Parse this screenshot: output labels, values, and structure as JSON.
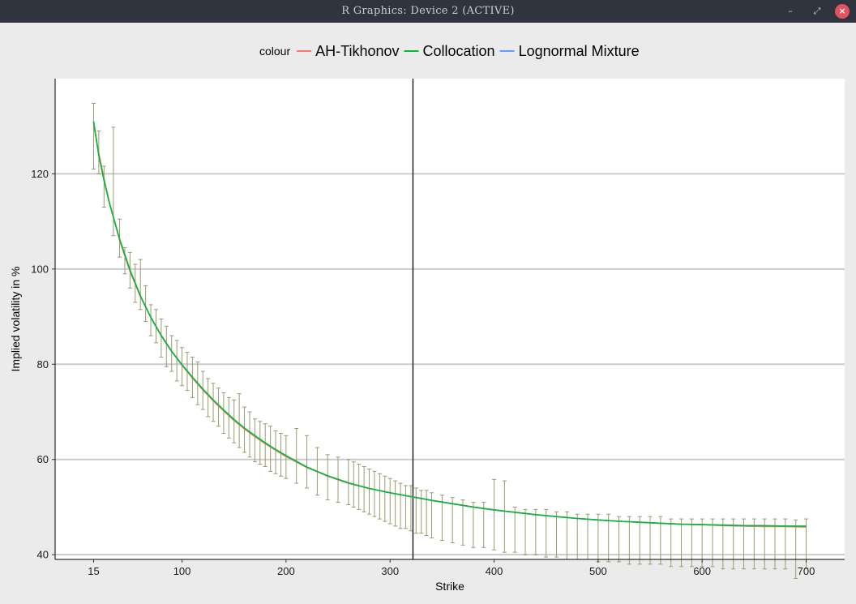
{
  "window": {
    "title": "R Graphics: Device 2 (ACTIVE)",
    "minimize_glyph": "–",
    "maximize_glyph": "⤢",
    "close_glyph": "×"
  },
  "chart_data": {
    "type": "line",
    "xlabel": "Strike",
    "ylabel": "Implied volatility in %",
    "x_ticks": [
      15,
      100,
      200,
      300,
      400,
      500,
      600,
      700
    ],
    "y_ticks": [
      40,
      60,
      80,
      100,
      120
    ],
    "xlim": [
      -22,
      737
    ],
    "ylim": [
      39,
      140
    ],
    "grid": "horizontal",
    "vline_x": 322,
    "legend": {
      "title": "colour",
      "position": "top",
      "entries": [
        {
          "name": "AH-Tikhonov",
          "color": "#f8766d"
        },
        {
          "name": "Collocation",
          "color": "#00ba38"
        },
        {
          "name": "Lognormal Mixture",
          "color": "#619cff"
        }
      ]
    },
    "series": [
      {
        "name": "AH-Tikhonov",
        "color": "#f8766d",
        "x": [
          15,
          20,
          25,
          30,
          40,
          50,
          60,
          70,
          80,
          90,
          100,
          110,
          120,
          130,
          140,
          150,
          160,
          170,
          180,
          190,
          200,
          220,
          240,
          260,
          280,
          300,
          320,
          340,
          360,
          380,
          400,
          420,
          440,
          460,
          480,
          500,
          520,
          540,
          560,
          580,
          600,
          620,
          640,
          660,
          680,
          700
        ],
        "y": [
          130.4,
          124.3,
          119.0,
          114.2,
          106.0,
          99.5,
          94.2,
          89.9,
          86.1,
          82.8,
          79.8,
          77.1,
          74.6,
          72.3,
          70.2,
          68.2,
          66.4,
          64.8,
          63.3,
          61.9,
          60.6,
          58.3,
          56.5,
          55.0,
          53.9,
          53.0,
          52.2,
          51.4,
          50.7,
          50.0,
          49.4,
          48.9,
          48.4,
          48.0,
          47.6,
          47.3,
          47.0,
          46.8,
          46.6,
          46.4,
          46.3,
          46.1,
          46.0,
          45.9,
          45.9,
          45.8
        ]
      },
      {
        "name": "Collocation",
        "color": "#00ba38",
        "x": [
          15,
          20,
          25,
          30,
          40,
          50,
          60,
          70,
          80,
          90,
          100,
          110,
          120,
          130,
          140,
          150,
          160,
          170,
          180,
          190,
          200,
          220,
          240,
          260,
          280,
          300,
          320,
          340,
          360,
          380,
          400,
          420,
          440,
          460,
          480,
          500,
          520,
          540,
          560,
          580,
          600,
          620,
          640,
          660,
          680,
          700
        ],
        "y": [
          131.0,
          123.8,
          118.6,
          114.0,
          106.3,
          99.8,
          94.4,
          89.8,
          86.0,
          82.7,
          79.9,
          77.3,
          74.8,
          72.5,
          70.4,
          68.4,
          66.6,
          65.0,
          63.5,
          62.1,
          60.8,
          58.4,
          56.6,
          55.1,
          53.9,
          53.0,
          52.2,
          51.4,
          50.7,
          50.0,
          49.4,
          48.9,
          48.4,
          48.0,
          47.6,
          47.3,
          47.0,
          46.8,
          46.6,
          46.4,
          46.3,
          46.2,
          46.1,
          46.1,
          46.0,
          46.0
        ]
      },
      {
        "name": "Lognormal Mixture",
        "color": "#619cff",
        "x": [
          15,
          20,
          25,
          30,
          40,
          50,
          60,
          70,
          80,
          90,
          100,
          110,
          120,
          130,
          140,
          150,
          160,
          170,
          180,
          190,
          200,
          220,
          240,
          260,
          280,
          300,
          320,
          340,
          360,
          380,
          400,
          420,
          440,
          460,
          480,
          500,
          520,
          540,
          560,
          580,
          600,
          620,
          640,
          660,
          680,
          700
        ],
        "y": [
          130.8,
          124.0,
          118.8,
          114.1,
          106.2,
          99.7,
          94.3,
          89.8,
          86.0,
          82.7,
          79.8,
          77.2,
          74.7,
          72.4,
          70.3,
          68.3,
          66.5,
          64.9,
          63.4,
          62.0,
          60.7,
          58.4,
          56.5,
          55.0,
          53.9,
          53.0,
          52.2,
          51.4,
          50.7,
          50.0,
          49.4,
          48.9,
          48.4,
          48.0,
          47.6,
          47.3,
          47.0,
          46.8,
          46.6,
          46.4,
          46.3,
          46.2,
          46.1,
          46.0,
          46.0,
          45.9
        ]
      }
    ],
    "errorbars": {
      "color": "#9c9a6e",
      "x": [
        15,
        20,
        25,
        34,
        40,
        45,
        50,
        55,
        60,
        65,
        70,
        75,
        80,
        85,
        90,
        95,
        100,
        105,
        110,
        115,
        120,
        125,
        130,
        135,
        140,
        145,
        150,
        155,
        160,
        165,
        170,
        175,
        180,
        185,
        190,
        195,
        200,
        210,
        220,
        230,
        240,
        250,
        260,
        265,
        270,
        275,
        280,
        285,
        290,
        295,
        300,
        305,
        310,
        315,
        320,
        325,
        330,
        335,
        340,
        350,
        360,
        370,
        380,
        390,
        400,
        410,
        420,
        430,
        440,
        450,
        460,
        470,
        480,
        490,
        500,
        510,
        520,
        530,
        540,
        550,
        560,
        570,
        580,
        590,
        600,
        610,
        620,
        630,
        640,
        650,
        660,
        670,
        680,
        690,
        700
      ],
      "low": [
        121.0,
        120.0,
        113.0,
        107.0,
        102.5,
        99.0,
        96.0,
        93.0,
        91.5,
        89.0,
        86.0,
        84.5,
        81.5,
        79.5,
        78.5,
        76.5,
        75.5,
        74.5,
        73.0,
        71.5,
        70.5,
        69.0,
        68.0,
        67.0,
        65.5,
        64.5,
        63.5,
        62.5,
        61.5,
        60.5,
        59.5,
        59.0,
        58.5,
        57.5,
        57.0,
        56.5,
        56.0,
        55.0,
        54.0,
        52.5,
        51.5,
        51.0,
        50.5,
        50.0,
        49.5,
        49.0,
        48.5,
        48.0,
        47.5,
        47.0,
        46.5,
        46.0,
        45.5,
        45.5,
        45.0,
        44.5,
        44.5,
        44.0,
        43.5,
        43.0,
        42.5,
        42.0,
        41.5,
        41.5,
        41.0,
        40.5,
        40.5,
        40.0,
        40.0,
        39.5,
        39.5,
        39.0,
        39.0,
        39.0,
        38.5,
        38.5,
        38.5,
        38.0,
        38.0,
        38.0,
        38.0,
        37.5,
        37.5,
        37.5,
        37.5,
        37.5,
        37.0,
        37.0,
        37.0,
        37.0,
        37.0,
        37.0,
        37.0,
        35.0,
        37.0
      ],
      "high": [
        134.8,
        129.0,
        121.6,
        129.8,
        110.5,
        104.5,
        103.5,
        101.0,
        102.0,
        96.5,
        92.5,
        91.5,
        89.5,
        88.0,
        86.0,
        85.0,
        83.5,
        82.5,
        81.5,
        80.5,
        78.5,
        77.0,
        76.0,
        75.0,
        74.0,
        73.0,
        72.5,
        73.8,
        71.0,
        70.0,
        68.5,
        68.0,
        67.5,
        67.0,
        66.0,
        65.5,
        65.0,
        66.5,
        65.0,
        62.5,
        61.0,
        60.5,
        60.0,
        59.5,
        59.0,
        58.5,
        58.0,
        57.5,
        57.0,
        56.5,
        56.0,
        55.5,
        55.0,
        54.5,
        54.5,
        54.0,
        53.5,
        53.5,
        53.0,
        52.5,
        52.0,
        51.5,
        51.0,
        51.0,
        55.8,
        55.5,
        50.0,
        49.5,
        49.5,
        49.5,
        49.0,
        49.0,
        48.5,
        48.5,
        48.5,
        48.5,
        48.0,
        48.0,
        48.0,
        48.0,
        48.0,
        47.5,
        47.5,
        47.5,
        47.5,
        47.5,
        47.5,
        47.5,
        47.5,
        47.5,
        47.5,
        47.5,
        47.5,
        47.3,
        47.5
      ]
    }
  }
}
